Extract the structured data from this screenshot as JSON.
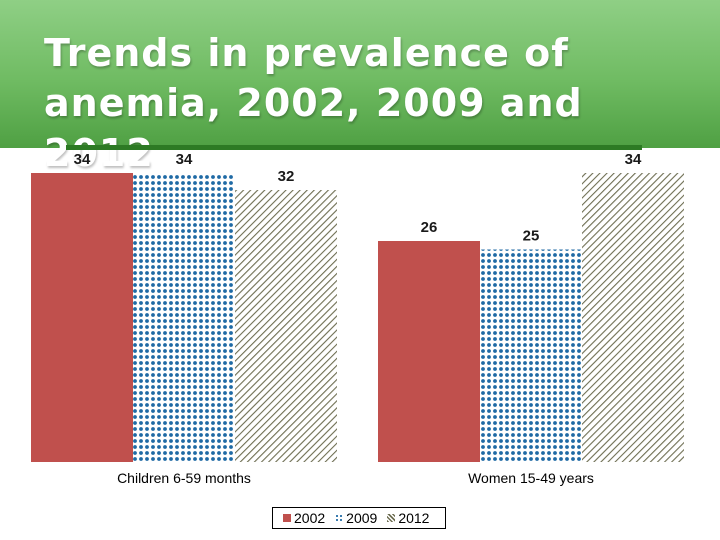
{
  "slide": {
    "title_line1": "Trends in prevalence of",
    "title_line2": "anemia, 2002, 2009 and 2012"
  },
  "colors": {
    "series_2002": "#c0504d",
    "series_2009": "#1f6aa5",
    "series_2012": "#8b8b6a",
    "title_band": "#6fbb62"
  },
  "chart_data": {
    "type": "bar",
    "title": "",
    "xlabel": "",
    "ylabel": "",
    "ylim": [
      0,
      36
    ],
    "grid": false,
    "legend_position": "bottom",
    "categories": [
      "Children 6-59 months",
      "Women 15-49 years"
    ],
    "series": [
      {
        "name": "2002",
        "values": [
          34,
          26
        ],
        "pattern": "solid"
      },
      {
        "name": "2009",
        "values": [
          34,
          25
        ],
        "pattern": "dotted"
      },
      {
        "name": "2012",
        "values": [
          32,
          34
        ],
        "pattern": "hatched"
      }
    ]
  }
}
